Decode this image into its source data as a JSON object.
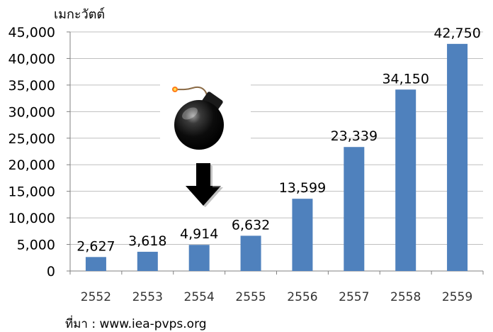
{
  "chart_data": {
    "type": "bar",
    "categories": [
      "2552",
      "2553",
      "2554",
      "2555",
      "2556",
      "2557",
      "2558",
      "2559"
    ],
    "values": [
      2627,
      3618,
      4914,
      6632,
      13599,
      23339,
      34150,
      42750
    ],
    "value_labels": [
      "2,627",
      "3,618",
      "4,914",
      "6,632",
      "13,599",
      "23,339",
      "34,150",
      "42,750"
    ],
    "y_ticks": [
      0,
      5000,
      10000,
      15000,
      20000,
      25000,
      30000,
      35000,
      40000,
      45000
    ],
    "y_tick_labels": [
      "0",
      "5,000",
      "10,000",
      "15,000",
      "20,000",
      "25,000",
      "30,000",
      "35,000",
      "40,000",
      "45,000"
    ],
    "ylim": [
      0,
      45000
    ],
    "ylabel": "เมกะวัตต์",
    "source": "ที่มา : www.iea-pvps.org",
    "grid": true,
    "bar_color": "#4f81bd",
    "annotation_icons": [
      "bomb-icon",
      "down-arrow-icon"
    ]
  }
}
